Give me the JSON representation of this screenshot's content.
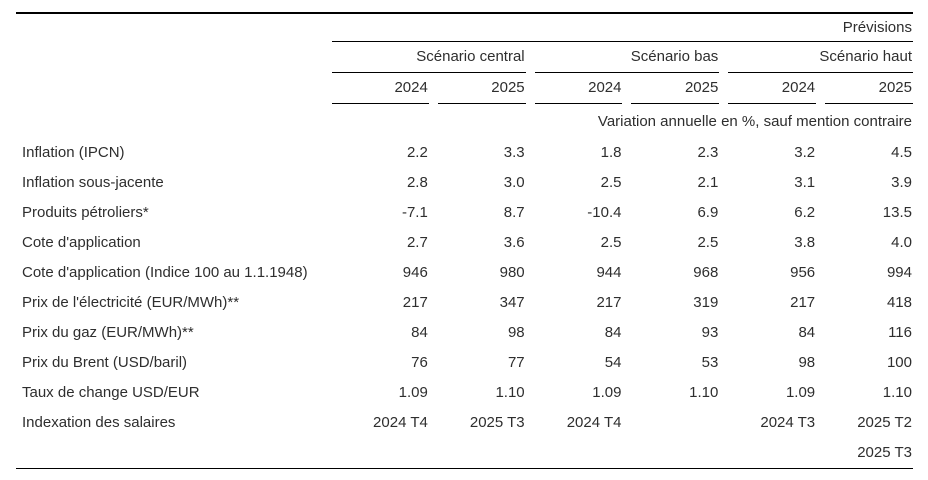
{
  "colors": {
    "text": "#2e2e2e",
    "rule": "#000000",
    "background": "#ffffff"
  },
  "header": {
    "previsions_label": "Prévisions",
    "groups": [
      {
        "label": "Scénario central"
      },
      {
        "label": "Scénario bas"
      },
      {
        "label": "Scénario haut"
      }
    ],
    "years": [
      "2024",
      "2025",
      "2024",
      "2025",
      "2024",
      "2025"
    ],
    "note": "Variation annuelle en %, sauf mention contraire"
  },
  "table": {
    "rows": [
      {
        "label": "Inflation (IPCN)",
        "values": [
          "2.2",
          "3.3",
          "1.8",
          "2.3",
          "3.2",
          "4.5"
        ]
      },
      {
        "label": "Inflation sous-jacente",
        "values": [
          "2.8",
          "3.0",
          "2.5",
          "2.1",
          "3.1",
          "3.9"
        ]
      },
      {
        "label": "Produits pétroliers*",
        "values": [
          "-7.1",
          "8.7",
          "-10.4",
          "6.9",
          "6.2",
          "13.5"
        ]
      },
      {
        "label": "Cote d'application",
        "values": [
          "2.7",
          "3.6",
          "2.5",
          "2.5",
          "3.8",
          "4.0"
        ]
      },
      {
        "label": "Cote d'application (Indice 100 au 1.1.1948)",
        "values": [
          "946",
          "980",
          "944",
          "968",
          "956",
          "994"
        ]
      },
      {
        "label": "Prix de l'électricité (EUR/MWh)**",
        "values": [
          "217",
          "347",
          "217",
          "319",
          "217",
          "418"
        ]
      },
      {
        "label": "Prix du gaz (EUR/MWh)**",
        "values": [
          "84",
          "98",
          "84",
          "93",
          "84",
          "116"
        ]
      },
      {
        "label": "Prix du Brent (USD/baril)",
        "values": [
          "76",
          "77",
          "54",
          "53",
          "98",
          "100"
        ]
      },
      {
        "label": "Taux de change USD/EUR",
        "values": [
          "1.09",
          "1.10",
          "1.09",
          "1.10",
          "1.09",
          "1.10"
        ]
      },
      {
        "label": "Indexation des salaires",
        "values": [
          "2024 T4",
          "2025 T3",
          "2024 T4",
          "",
          "2024 T3",
          "2025 T2"
        ]
      },
      {
        "label": "",
        "values": [
          "",
          "",
          "",
          "",
          "",
          "2025 T3"
        ]
      }
    ]
  },
  "chart_data": {
    "type": "table",
    "title": "Prévisions",
    "column_groups": [
      "Scénario central",
      "Scénario bas",
      "Scénario haut"
    ],
    "columns": [
      "Scénario central 2024",
      "Scénario central 2025",
      "Scénario bas 2024",
      "Scénario bas 2025",
      "Scénario haut 2024",
      "Scénario haut 2025"
    ],
    "unit_note": "Variation annuelle en %, sauf mention contraire",
    "rows": [
      {
        "label": "Inflation (IPCN)",
        "values": [
          2.2,
          3.3,
          1.8,
          2.3,
          3.2,
          4.5
        ]
      },
      {
        "label": "Inflation sous-jacente",
        "values": [
          2.8,
          3.0,
          2.5,
          2.1,
          3.1,
          3.9
        ]
      },
      {
        "label": "Produits pétroliers*",
        "values": [
          -7.1,
          8.7,
          -10.4,
          6.9,
          6.2,
          13.5
        ]
      },
      {
        "label": "Cote d'application",
        "values": [
          2.7,
          3.6,
          2.5,
          2.5,
          3.8,
          4.0
        ]
      },
      {
        "label": "Cote d'application (Indice 100 au 1.1.1948)",
        "values": [
          946,
          980,
          944,
          968,
          956,
          994
        ]
      },
      {
        "label": "Prix de l'électricité (EUR/MWh)**",
        "values": [
          217,
          347,
          217,
          319,
          217,
          418
        ]
      },
      {
        "label": "Prix du gaz (EUR/MWh)**",
        "values": [
          84,
          98,
          84,
          93,
          84,
          116
        ]
      },
      {
        "label": "Prix du Brent (USD/baril)",
        "values": [
          76,
          77,
          54,
          53,
          98,
          100
        ]
      },
      {
        "label": "Taux de change USD/EUR",
        "values": [
          1.09,
          1.1,
          1.09,
          1.1,
          1.09,
          1.1
        ]
      },
      {
        "label": "Indexation des salaires",
        "values": [
          "2024 T4",
          "2025 T3",
          "2024 T4",
          null,
          "2024 T3",
          "2025 T2 / 2025 T3"
        ]
      }
    ]
  }
}
